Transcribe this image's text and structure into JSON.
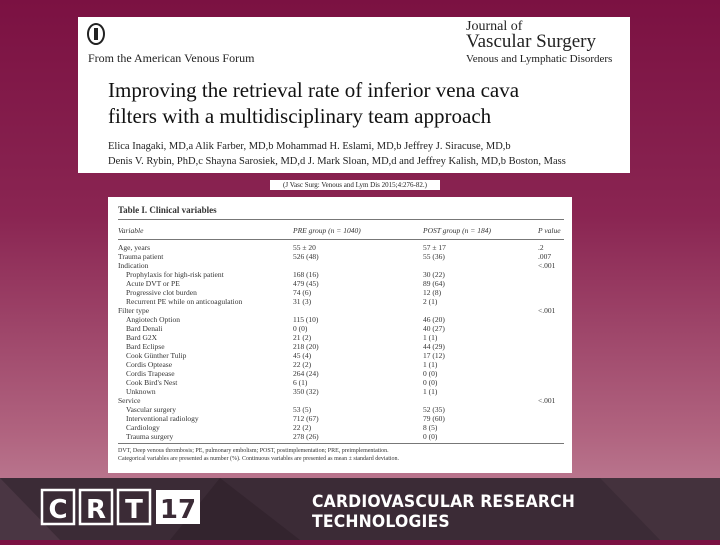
{
  "article": {
    "publisher_tag": "From the American Venous Forum",
    "journal": "Journal of",
    "journal_name": "Vascular Surgery",
    "journal_sub": "Venous and Lymphatic Disorders",
    "title_lines": [
      "Improving the retrieval rate of inferior vena cava",
      "filters with a multidisciplinary team approach"
    ],
    "author_lines": [
      "Elica Inagaki, MD,a Alik Farber, MD,b Mohammad H. Eslami, MD,b Jeffrey J. Siracuse, MD,b",
      "Denis V. Rybin, PhD,c Shayna Sarosiek, MD,d J. Mark Sloan, MD,d and Jeffrey Kalish, MD,b Boston, Mass"
    ],
    "citation": "(J Vasc Surg: Venous and Lym Dis 2015;4:276-82.)"
  },
  "table": {
    "title": "Table I. Clinical variables",
    "headers": [
      "Variable",
      "PRE group (n = 1040)",
      "POST group (n = 184)",
      "P value"
    ],
    "rows": [
      [
        "Age, years",
        "55 ± 20",
        "57 ± 17",
        ".2"
      ],
      [
        "Trauma patient",
        "526 (48)",
        "55 (36)",
        ".007"
      ],
      [
        "Indication",
        null,
        null,
        "<.001"
      ],
      [
        "Prophylaxis for high-risk patient",
        "168 (16)",
        "30 (22)",
        null
      ],
      [
        "Acute DVT or PE",
        "479 (45)",
        "89 (64)",
        null
      ],
      [
        "Progressive clot burden",
        "74 (6)",
        "12 (8)",
        null
      ],
      [
        "Recurrent PE while on anticoagulation",
        "31 (3)",
        "2 (1)",
        null
      ],
      [
        "Filter type",
        null,
        null,
        "<.001"
      ],
      [
        "Angiotech Option",
        "115 (10)",
        "46 (20)",
        null
      ],
      [
        "Bard Denali",
        "0 (0)",
        "40 (27)",
        null
      ],
      [
        "Bard G2X",
        "21 (2)",
        "1 (1)",
        null
      ],
      [
        "Bard Eclipse",
        "218 (20)",
        "44 (29)",
        null
      ],
      [
        "Cook Günther Tulip",
        "45 (4)",
        "17 (12)",
        null
      ],
      [
        "Cordis Optease",
        "22 (2)",
        "1 (1)",
        null
      ],
      [
        "Cordis Trapease",
        "264 (24)",
        "0 (0)",
        null
      ],
      [
        "Cook Bird's Nest",
        "6 (1)",
        "0 (0)",
        null
      ],
      [
        "Unknown",
        "350 (32)",
        "1 (1)",
        null
      ],
      [
        "Service",
        null,
        null,
        "<.001"
      ],
      [
        "Vascular surgery",
        "53 (5)",
        "52 (35)",
        null
      ],
      [
        "Interventional radiology",
        "712 (67)",
        "79 (60)",
        null
      ],
      [
        "Cardiology",
        "22 (2)",
        "8 (5)",
        null
      ],
      [
        "Trauma surgery",
        "278 (26)",
        "0 (0)",
        null
      ]
    ],
    "footnotes": [
      "DVT, Deep venous thrombosis; PE, pulmonary embolism; POST, postimplementation; PRE, preimplementation.",
      "Categorical variables are presented as number (%). Continuous variables are presented as mean ± standard deviation."
    ]
  },
  "footer": {
    "logo_letters": [
      "C",
      "R",
      "T"
    ],
    "logo_number": "17",
    "organization": "CARDIOVASCULAR RESEARCH TECHNOLOGIES"
  }
}
